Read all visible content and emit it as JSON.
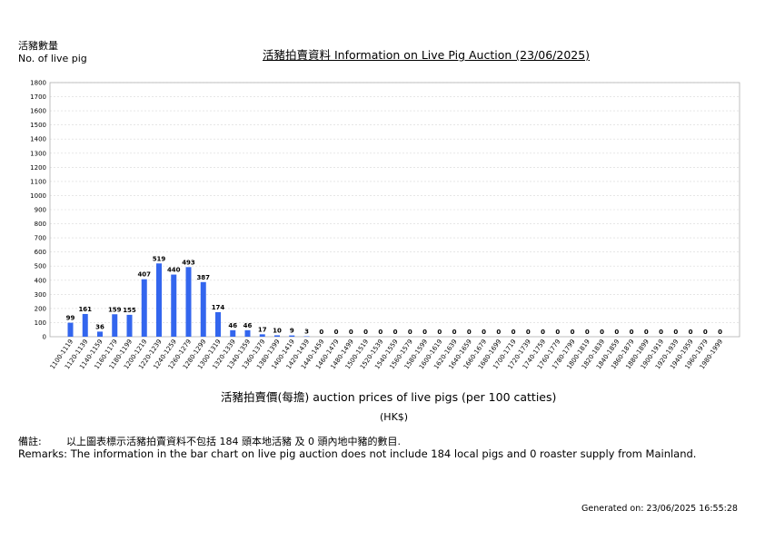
{
  "header": {
    "y_label_cn": "活豬數量",
    "y_label_en": "No. of live pig",
    "title": "活豬拍賣資料 Information on Live Pig Auction (23/06/2025)"
  },
  "axis": {
    "x_title": "活豬拍賣價(每擔) auction prices of live pigs (per 100 catties)",
    "x_unit": "(HK$)"
  },
  "remarks": {
    "cn_label": "備註:",
    "cn_text": "以上圖表標示活豬拍賣資料不包括 184 頭本地活豬 及 0 頭內地中豬的數目.",
    "en_text": "Remarks: The information in the bar chart on live pig auction does not include 184 local pigs and 0 roaster supply from Mainland."
  },
  "footer": {
    "generated": "Generated on: 23/06/2025 16:55:28"
  },
  "chart_data": {
    "type": "bar",
    "bar_color": "#3366ee",
    "ylim": [
      0,
      1800
    ],
    "yticks": [
      0,
      100,
      200,
      300,
      400,
      500,
      600,
      700,
      800,
      900,
      1000,
      1100,
      1200,
      1300,
      1400,
      1500,
      1600,
      1700,
      1800
    ],
    "grid": true,
    "categories": [
      "1100-1119",
      "1120-1139",
      "1140-1159",
      "1160-1179",
      "1180-1199",
      "1200-1219",
      "1220-1239",
      "1240-1259",
      "1260-1279",
      "1280-1299",
      "1300-1319",
      "1320-1339",
      "1340-1359",
      "1360-1379",
      "1380-1399",
      "1400-1419",
      "1420-1439",
      "1440-1459",
      "1460-1479",
      "1480-1499",
      "1500-1519",
      "1520-1539",
      "1540-1559",
      "1560-1579",
      "1580-1599",
      "1600-1619",
      "1620-1639",
      "1640-1659",
      "1660-1679",
      "1680-1699",
      "1700-1719",
      "1720-1739",
      "1740-1759",
      "1760-1779",
      "1780-1799",
      "1800-1819",
      "1820-1839",
      "1840-1859",
      "1860-1879",
      "1880-1899",
      "1900-1919",
      "1920-1939",
      "1940-1959",
      "1960-1979",
      "1980-1999"
    ],
    "values": [
      99,
      161,
      36,
      159,
      155,
      407,
      519,
      440,
      493,
      387,
      174,
      46,
      46,
      17,
      10,
      9,
      3,
      0,
      0,
      0,
      0,
      0,
      0,
      0,
      0,
      0,
      0,
      0,
      0,
      0,
      0,
      0,
      0,
      0,
      0,
      0,
      0,
      0,
      0,
      0,
      0,
      0,
      0,
      0,
      0
    ]
  }
}
